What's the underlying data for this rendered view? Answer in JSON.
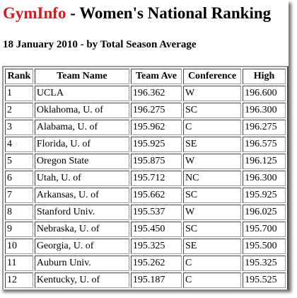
{
  "header": {
    "brand": "GymInfo",
    "title": " - Women's National Ranking",
    "subtitle": "18 January 2010 - by Total Season Average"
  },
  "colors": {
    "brand": "#e0151b",
    "text": "#000000",
    "background": "#ffffff"
  },
  "table": {
    "columns": [
      "Rank",
      "Team Name",
      "Team Ave",
      "Conference",
      "High"
    ],
    "rows": [
      {
        "rank": "1",
        "team": "UCLA",
        "ave": "196.362",
        "conf": "W",
        "high": "196.600"
      },
      {
        "rank": "2",
        "team": "Oklahoma, U. of",
        "ave": "196.275",
        "conf": "SC",
        "high": "196.300"
      },
      {
        "rank": "3",
        "team": "Alabama, U. of",
        "ave": "195.962",
        "conf": "C",
        "high": "196.275"
      },
      {
        "rank": "4",
        "team": "Florida, U. of",
        "ave": "195.925",
        "conf": "SE",
        "high": "196.575"
      },
      {
        "rank": "5",
        "team": "Oregon State",
        "ave": "195.875",
        "conf": "W",
        "high": "196.125"
      },
      {
        "rank": "6",
        "team": "Utah, U. of",
        "ave": "195.712",
        "conf": "NC",
        "high": "196.300"
      },
      {
        "rank": "7",
        "team": "Arkansas, U. of",
        "ave": "195.662",
        "conf": "SC",
        "high": "195.925"
      },
      {
        "rank": "8",
        "team": "Stanford Univ.",
        "ave": "195.537",
        "conf": "W",
        "high": "196.025"
      },
      {
        "rank": "9",
        "team": "Nebraska, U. of",
        "ave": "195.450",
        "conf": "SC",
        "high": "195.700"
      },
      {
        "rank": "10",
        "team": "Georgia, U. of",
        "ave": "195.325",
        "conf": "SE",
        "high": "195.500"
      },
      {
        "rank": "11",
        "team": "Auburn Univ.",
        "ave": "195.262",
        "conf": "C",
        "high": "195.325"
      },
      {
        "rank": "12",
        "team": "Kentucky, U. of",
        "ave": "195.187",
        "conf": "C",
        "high": "195.525"
      }
    ]
  }
}
